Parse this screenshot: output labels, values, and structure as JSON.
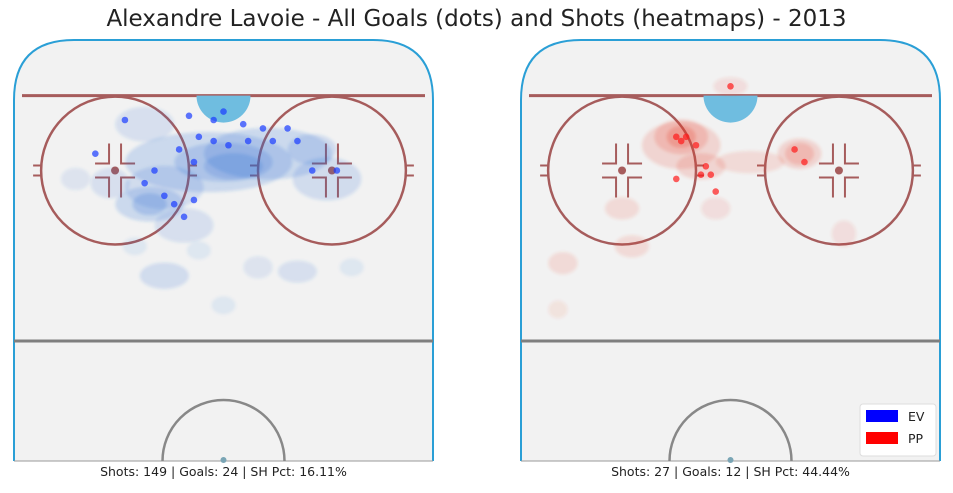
{
  "title": "Alexandre Lavoie - All Goals (dots) and Shots (heatmaps) - 2013",
  "chart_data": [
    {
      "type": "heatmap",
      "panel": "EV",
      "caption": "Shots: 149 | Goals: 24 | SH Pct: 16.11%",
      "shots": 149,
      "goals": 24,
      "sh_pct": 16.11,
      "rink_x_range": [
        -42.5,
        42.5
      ],
      "rink_y_range": [
        0,
        100
      ],
      "heat_color": "#2a6fd6",
      "goal_color": "#1a3cff",
      "shot_density": [
        {
          "x": -3,
          "y": 71,
          "w": 32,
          "h": 12,
          "a": 0.35
        },
        {
          "x": 9,
          "y": 73,
          "w": 24,
          "h": 10,
          "a": 0.35
        },
        {
          "x": 0,
          "y": 71,
          "w": 18,
          "h": 7,
          "a": 0.35
        },
        {
          "x": 2,
          "y": 70,
          "w": 10,
          "h": 4,
          "a": 0.35
        },
        {
          "x": -16,
          "y": 80,
          "w": 10,
          "h": 6,
          "a": 0.25
        },
        {
          "x": -12,
          "y": 65,
          "w": 14,
          "h": 8,
          "a": 0.3
        },
        {
          "x": -15,
          "y": 61,
          "w": 12,
          "h": 6,
          "a": 0.35
        },
        {
          "x": -15,
          "y": 61,
          "w": 5,
          "h": 3,
          "a": 0.4
        },
        {
          "x": -23,
          "y": 66,
          "w": 6,
          "h": 5,
          "a": 0.25
        },
        {
          "x": -8,
          "y": 56,
          "w": 10,
          "h": 6,
          "a": 0.25
        },
        {
          "x": 21,
          "y": 67,
          "w": 12,
          "h": 8,
          "a": 0.3
        },
        {
          "x": 18,
          "y": 74,
          "w": 8,
          "h": 5,
          "a": 0.3
        },
        {
          "x": -12,
          "y": 44,
          "w": 8,
          "h": 4,
          "a": 0.3
        },
        {
          "x": 15,
          "y": 45,
          "w": 6,
          "h": 3,
          "a": 0.25
        },
        {
          "x": 7,
          "y": 46,
          "w": 4,
          "h": 3,
          "a": 0.2
        },
        {
          "x": -30,
          "y": 67,
          "w": 4,
          "h": 3,
          "a": 0.2
        },
        {
          "x": -18,
          "y": 51,
          "w": 3,
          "h": 2,
          "a": 0.15
        },
        {
          "x": -5,
          "y": 50,
          "w": 3,
          "h": 2,
          "a": 0.15
        },
        {
          "x": 0,
          "y": 37,
          "w": 3,
          "h": 2,
          "a": 0.15
        },
        {
          "x": 26,
          "y": 46,
          "w": 3,
          "h": 2,
          "a": 0.15
        }
      ],
      "goal_points": [
        {
          "x": -20,
          "y": 81
        },
        {
          "x": -7,
          "y": 82
        },
        {
          "x": 0,
          "y": 83
        },
        {
          "x": 4,
          "y": 80
        },
        {
          "x": 8,
          "y": 79
        },
        {
          "x": 13,
          "y": 79
        },
        {
          "x": 15,
          "y": 76
        },
        {
          "x": -5,
          "y": 77
        },
        {
          "x": -2,
          "y": 76
        },
        {
          "x": 1,
          "y": 75
        },
        {
          "x": 5,
          "y": 76
        },
        {
          "x": 10,
          "y": 76
        },
        {
          "x": -9,
          "y": 74
        },
        {
          "x": -6,
          "y": 71
        },
        {
          "x": -14,
          "y": 69
        },
        {
          "x": -16,
          "y": 66
        },
        {
          "x": -12,
          "y": 63
        },
        {
          "x": -10,
          "y": 61
        },
        {
          "x": -8,
          "y": 58
        },
        {
          "x": -6,
          "y": 62
        },
        {
          "x": 18,
          "y": 69
        },
        {
          "x": 23,
          "y": 69
        },
        {
          "x": -2,
          "y": 81
        },
        {
          "x": -26,
          "y": 73
        }
      ]
    },
    {
      "type": "heatmap",
      "panel": "PP",
      "caption": "Shots: 27 | Goals: 12 | SH Pct: 44.44%",
      "shots": 27,
      "goals": 12,
      "sh_pct": 44.44,
      "rink_x_range": [
        -42.5,
        42.5
      ],
      "rink_y_range": [
        0,
        100
      ],
      "heat_color": "#e8402a",
      "goal_color": "#ff1a1a",
      "shot_density": [
        {
          "x": -10,
          "y": 75,
          "w": 14,
          "h": 9,
          "a": 0.3
        },
        {
          "x": -10,
          "y": 77,
          "w": 9,
          "h": 6,
          "a": 0.35
        },
        {
          "x": -10,
          "y": 77,
          "w": 4,
          "h": 3,
          "a": 0.45
        },
        {
          "x": -6,
          "y": 70,
          "w": 8,
          "h": 4,
          "a": 0.3
        },
        {
          "x": 14,
          "y": 73,
          "w": 7,
          "h": 5,
          "a": 0.3
        },
        {
          "x": 14,
          "y": 73,
          "w": 4,
          "h": 3,
          "a": 0.35
        },
        {
          "x": 4,
          "y": 71,
          "w": 12,
          "h": 3,
          "a": 0.25
        },
        {
          "x": -22,
          "y": 60,
          "w": 5,
          "h": 3,
          "a": 0.25
        },
        {
          "x": -3,
          "y": 60,
          "w": 4,
          "h": 3,
          "a": 0.2
        },
        {
          "x": -20,
          "y": 51,
          "w": 5,
          "h": 3,
          "a": 0.25
        },
        {
          "x": 0,
          "y": 89,
          "w": 5,
          "h": 2,
          "a": 0.2
        },
        {
          "x": 23,
          "y": 54,
          "w": 3,
          "h": 4,
          "a": 0.2
        },
        {
          "x": -34,
          "y": 47,
          "w": 4,
          "h": 3,
          "a": 0.25
        },
        {
          "x": -35,
          "y": 36,
          "w": 2,
          "h": 2,
          "a": 0.15
        }
      ],
      "goal_points": [
        {
          "x": -11,
          "y": 77
        },
        {
          "x": -9,
          "y": 77
        },
        {
          "x": -10,
          "y": 76
        },
        {
          "x": -7,
          "y": 75
        },
        {
          "x": -5,
          "y": 70
        },
        {
          "x": -4,
          "y": 68
        },
        {
          "x": -6,
          "y": 68
        },
        {
          "x": -11,
          "y": 67
        },
        {
          "x": -3,
          "y": 64
        },
        {
          "x": 13,
          "y": 74
        },
        {
          "x": 15,
          "y": 71
        },
        {
          "x": 0,
          "y": 89
        }
      ]
    }
  ],
  "legend": {
    "position": "bottom-right",
    "items": [
      {
        "label": "EV",
        "color": "#0000ff"
      },
      {
        "label": "PP",
        "color": "#ff0000"
      }
    ]
  }
}
